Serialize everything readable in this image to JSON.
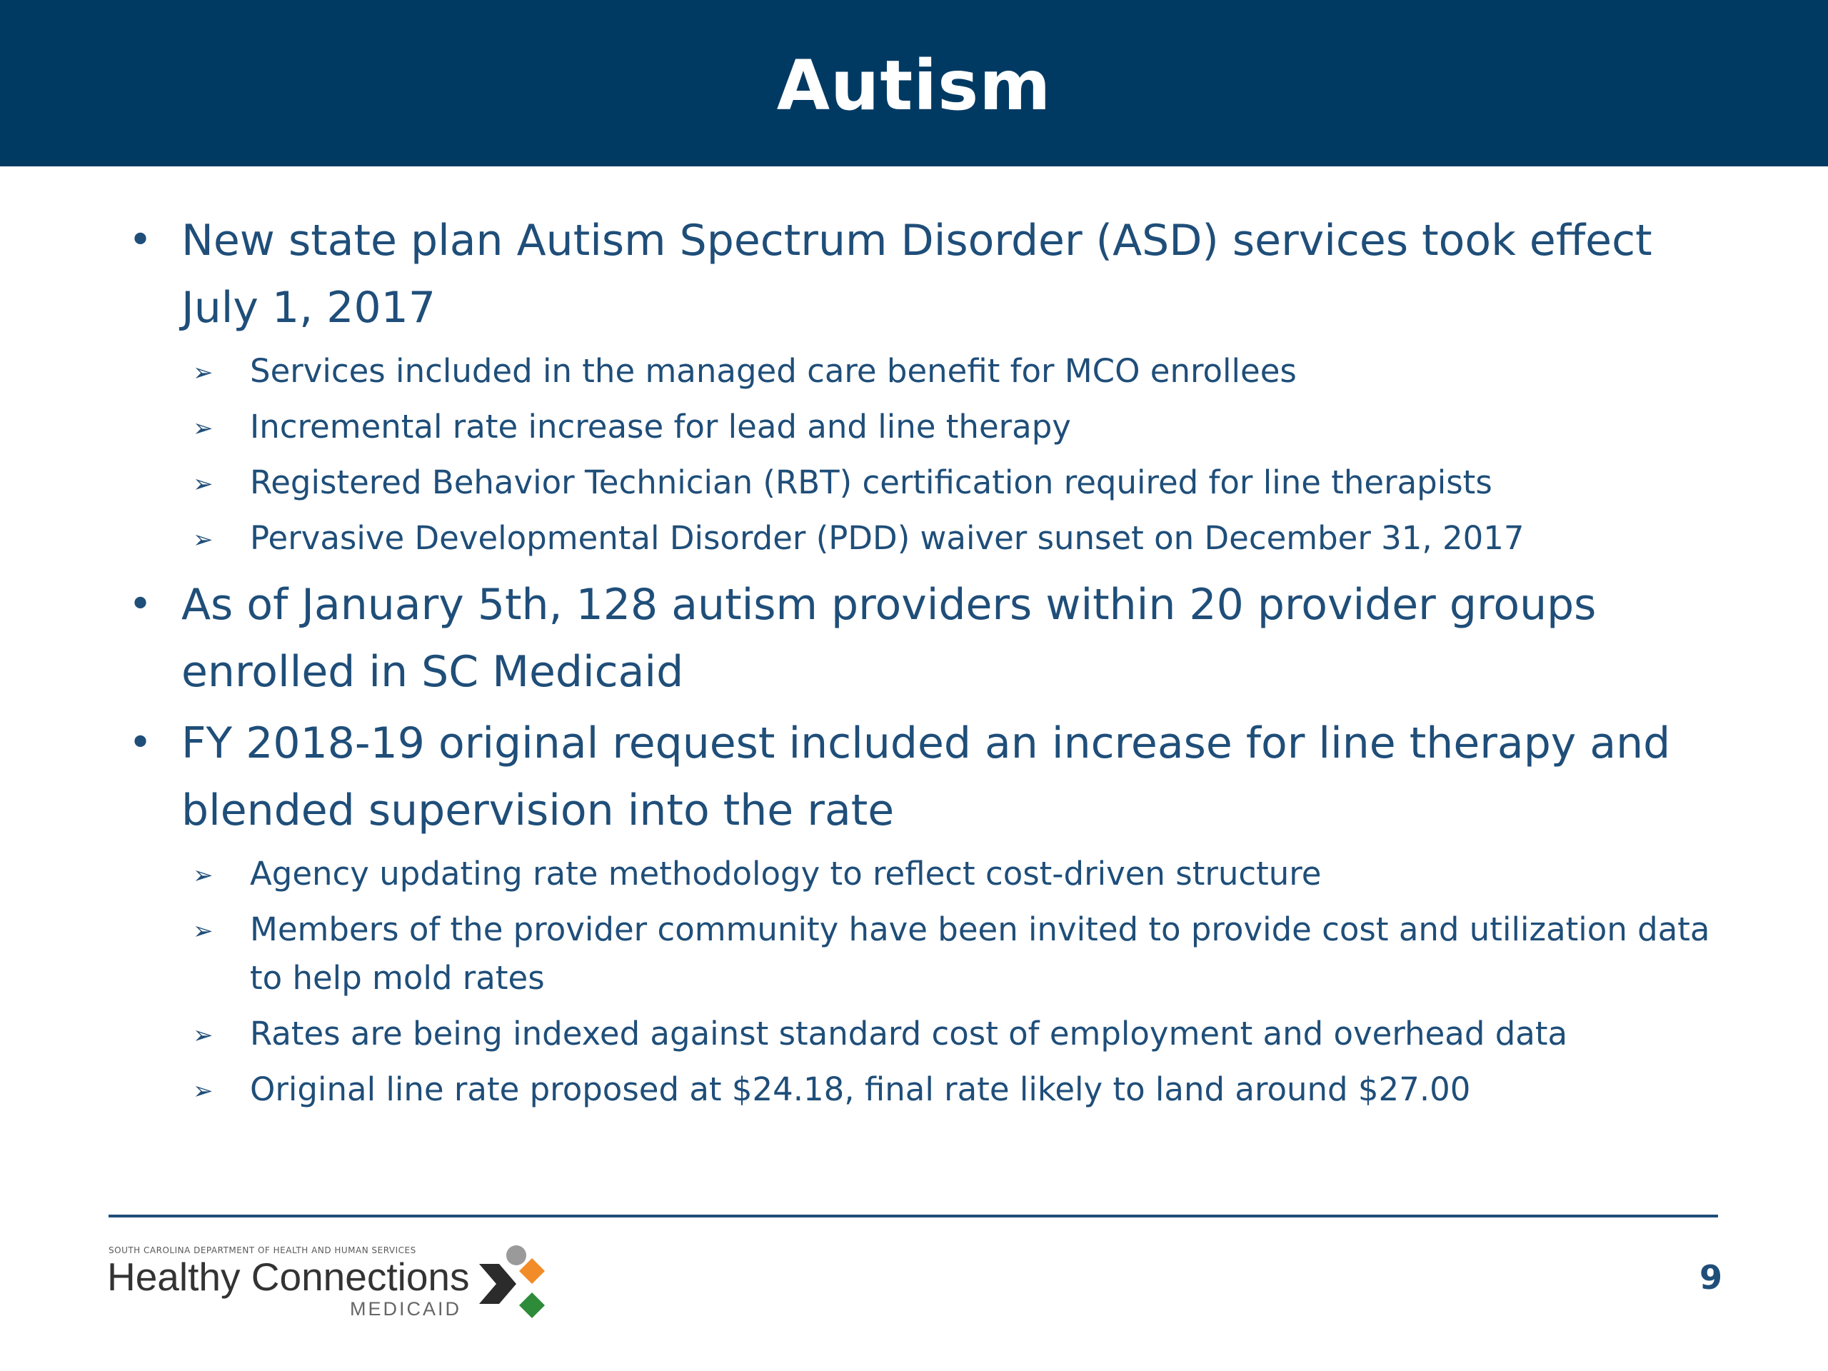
{
  "slide": {
    "title": "Autism",
    "page_number": "9"
  },
  "bullets": [
    {
      "text": "New state plan Autism Spectrum Disorder (ASD) services took effect July 1, 2017",
      "subitems": [
        "Services included in the managed care benefit for MCO enrollees",
        "Incremental rate increase for lead and line therapy",
        "Registered Behavior Technician (RBT) certification required for line therapists",
        "Pervasive Developmental Disorder (PDD) waiver sunset on December 31, 2017"
      ]
    },
    {
      "text": "As of January 5th, 128 autism providers within 20 provider groups enrolled in SC Medicaid",
      "subitems": []
    },
    {
      "text": "FY 2018-19 original request included an increase for line therapy and blended supervision into the rate",
      "subitems": [
        "Agency updating rate methodology to reflect cost-driven structure",
        "Members of the provider community have been invited to provide cost and utilization data to help mold rates",
        "Rates are being indexed against standard cost of employment and overhead data",
        "Original line rate proposed at $24.18, final rate likely to land around $27.00"
      ]
    }
  ],
  "logo": {
    "department": "SOUTH CAROLINA DEPARTMENT OF HEALTH AND HUMAN SERVICES",
    "name": "Healthy Connections",
    "sub": "MEDICAID"
  },
  "icons": {
    "bullet": "bullet-dot-icon",
    "subbullet": "arrowhead-icon",
    "logo_mark": "healthy-connections-x-icon"
  },
  "colors": {
    "header": "#003a63",
    "text": "#1f4e79",
    "logo_orange": "#f28c28",
    "logo_green": "#2e8b3a",
    "logo_gray": "#9a9a9a",
    "logo_dark": "#2b2b2b"
  }
}
